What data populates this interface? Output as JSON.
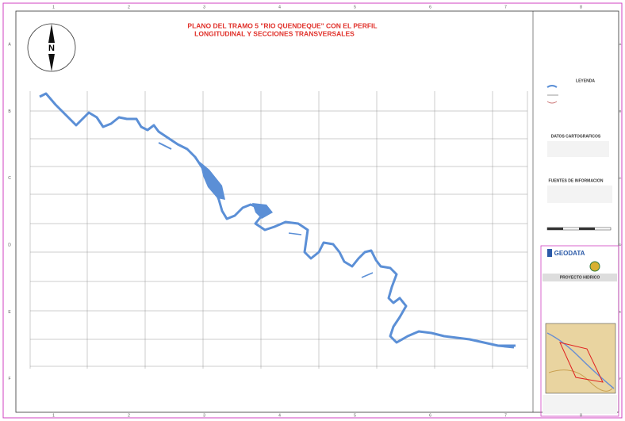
{
  "title": {
    "line1": "PLANO DEL TRAMO 5 \"RIO QUENDEQUE\" CON EL PERFIL",
    "line2": "LONGITUDINAL Y SECCIONES TRANSVERSALES"
  },
  "north": "N",
  "grid": {
    "columns": [
      "1",
      "2",
      "3",
      "4",
      "5",
      "6",
      "7",
      "8"
    ],
    "rows": [
      "A",
      "B",
      "C",
      "D",
      "E",
      "F"
    ]
  },
  "sidebar": {
    "legend_title": "LEYENDA",
    "cartographic_title": "DATOS CARTOGRAFICOS",
    "sources_title": "FUENTES DE INFORMACION",
    "company": "GEODATA",
    "project": "PROYECTO HIDRICO"
  }
}
